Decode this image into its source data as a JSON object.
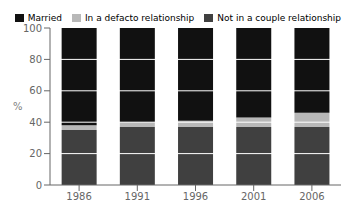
{
  "chart_data": {
    "type": "bar",
    "stacked": true,
    "categories": [
      "1986",
      "1991",
      "1996",
      "2001",
      "2006"
    ],
    "series": [
      {
        "name": "Not in a couple relationship",
        "color": "#404040",
        "values": [
          35,
          37,
          37,
          37,
          37
        ]
      },
      {
        "name": "In a defacto relationship",
        "color": "#b8b8b8",
        "values": [
          3,
          3,
          4,
          6,
          9
        ]
      },
      {
        "name": "Married",
        "color": "#111111",
        "values": [
          62,
          60,
          59,
          57,
          54
        ]
      }
    ],
    "ylabel": "%",
    "ylim": [
      0,
      100
    ],
    "yticks": [
      0,
      20,
      40,
      60,
      80,
      100
    ],
    "grid": true,
    "legend": "upper right"
  }
}
